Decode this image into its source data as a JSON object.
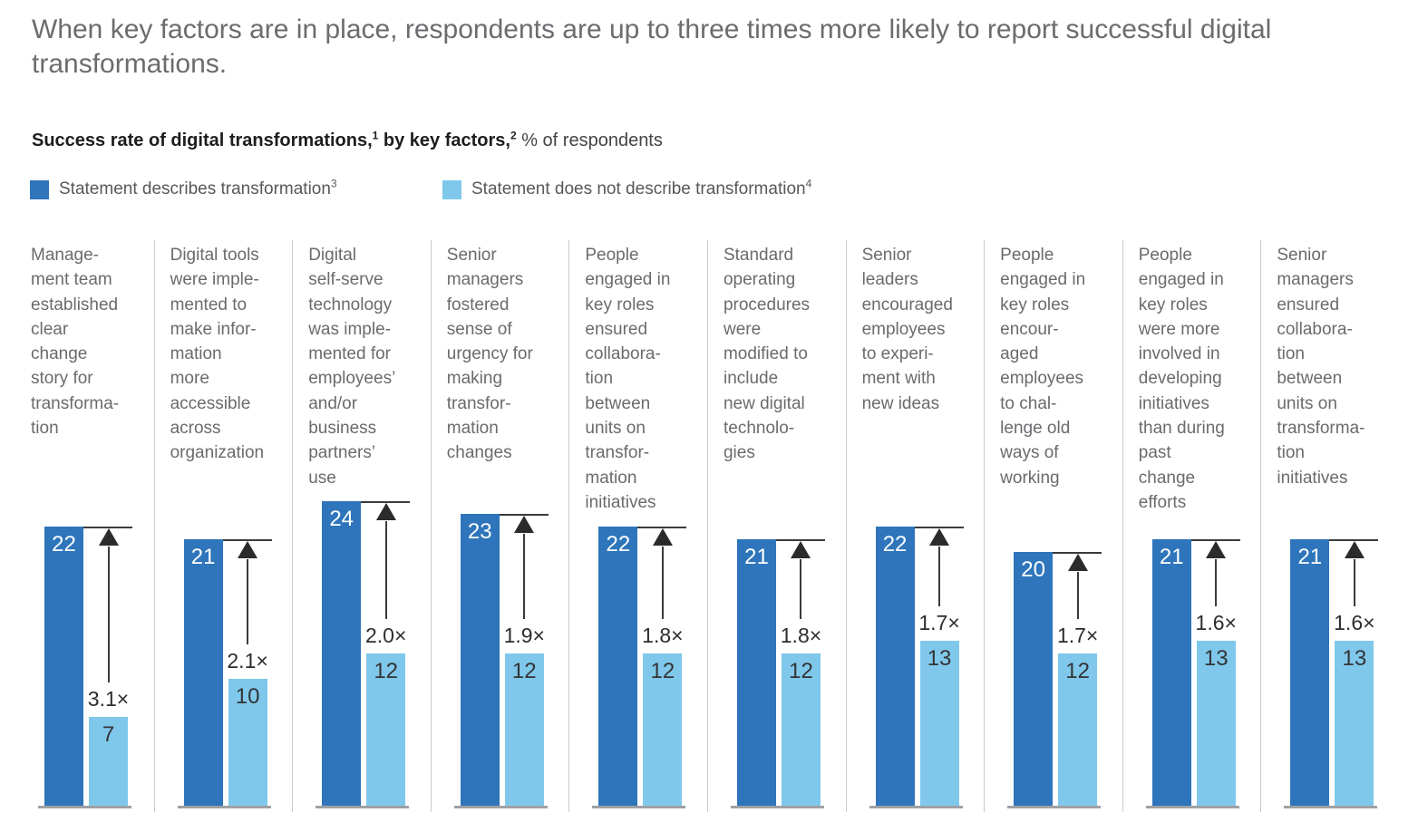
{
  "page": {
    "title": "When key factors are in place, respondents are up to three times more likely to report successful digital transformations.",
    "subtitle": {
      "bold_1": "Success rate of digital transformations,",
      "sup_1": "1",
      "bold_2": " by key factors,",
      "sup_2": "2",
      "regular": " % of respondents"
    },
    "legend": [
      {
        "label": "Statement describes transformation",
        "sup": "3",
        "color": "#2e75bb"
      },
      {
        "label": "Statement does not describe transformation",
        "sup": "4",
        "color": "#7fc8eb"
      }
    ]
  },
  "chart_data": {
    "type": "bar",
    "title": "Success rate of digital transformations, by key factors, % of respondents",
    "ylabel": "% of respondents",
    "ylim": [
      0,
      24
    ],
    "grid": false,
    "legend_position": "top-left",
    "series": [
      {
        "name": "Statement describes transformation",
        "color": "#2e75bb",
        "values": [
          22,
          21,
          24,
          23,
          22,
          21,
          22,
          20,
          21,
          21
        ]
      },
      {
        "name": "Statement does not describe transformation",
        "color": "#7fc8eb",
        "values": [
          7,
          10,
          12,
          12,
          12,
          12,
          13,
          12,
          13,
          13
        ]
      }
    ],
    "multipliers": [
      "3.1×",
      "2.1×",
      "2.0×",
      "1.9×",
      "1.8×",
      "1.8×",
      "1.7×",
      "1.7×",
      "1.6×",
      "1.6×"
    ],
    "categories": [
      "Management team established clear change story for transformation",
      "Digital tools were implemented to make information more accessible across organization",
      "Digital self-serve technology was implemented for employees’ and/or business partners’ use",
      "Senior managers fostered sense of urgency for making transformation changes",
      "People engaged in key roles ensured collaboration between units on transformation initiatives",
      "Standard operating procedures were modified to include new digital technologies",
      "Senior leaders encouraged employees to experiment with new ideas",
      "People engaged in key roles encouraged employees to challenge old ways of working",
      "People engaged in key roles were more involved in developing initiatives than during past change efforts",
      "Senior managers ensured collaboration between units on transformation initiatives"
    ],
    "groups": [
      {
        "factor": "Manage-\nment team\nestablished\nclear\nchange\nstory for\ntransforma-\ntion",
        "describes": 22,
        "does_not": 7,
        "multiplier": "3.1×"
      },
      {
        "factor": "Digital tools\nwere imple-\nmented to\nmake infor-\nmation\nmore\naccessible\nacross\norganization",
        "describes": 21,
        "does_not": 10,
        "multiplier": "2.1×"
      },
      {
        "factor": "Digital\nself-serve\ntechnology\nwas imple-\nmented for\nemployees’\nand/or\nbusiness\npartners’\nuse",
        "describes": 24,
        "does_not": 12,
        "multiplier": "2.0×"
      },
      {
        "factor": "Senior\nmanagers\nfostered\nsense of\nurgency for\nmaking\ntransfor-\nmation\nchanges",
        "describes": 23,
        "does_not": 12,
        "multiplier": "1.9×"
      },
      {
        "factor": "People\nengaged in\nkey roles\nensured\ncollabora-\ntion\nbetween\nunits on\ntransfor-\nmation\ninitiatives",
        "describes": 22,
        "does_not": 12,
        "multiplier": "1.8×"
      },
      {
        "factor": "Standard\noperating\nprocedures\nwere\nmodified to\ninclude\nnew digital\ntechnolo-\ngies",
        "describes": 21,
        "does_not": 12,
        "multiplier": "1.8×"
      },
      {
        "factor": "Senior\nleaders\nencouraged\nemployees\nto experi-\nment with\nnew ideas",
        "describes": 22,
        "does_not": 13,
        "multiplier": "1.7×"
      },
      {
        "factor": "People\nengaged in\nkey roles\nencour-\naged\nemployees\nto chal-\nlenge old\nways of\nworking",
        "describes": 20,
        "does_not": 12,
        "multiplier": "1.7×"
      },
      {
        "factor": "People\nengaged in\nkey roles\nwere more\ninvolved in\ndeveloping\ninitiatives\nthan during\npast\nchange\nefforts",
        "describes": 21,
        "does_not": 13,
        "multiplier": "1.6×"
      },
      {
        "factor": "Senior\nmanagers\nensured\ncollabora-\ntion\nbetween\nunits on\ntransforma-\ntion\ninitiatives",
        "describes": 21,
        "does_not": 13,
        "multiplier": "1.6×"
      }
    ]
  }
}
